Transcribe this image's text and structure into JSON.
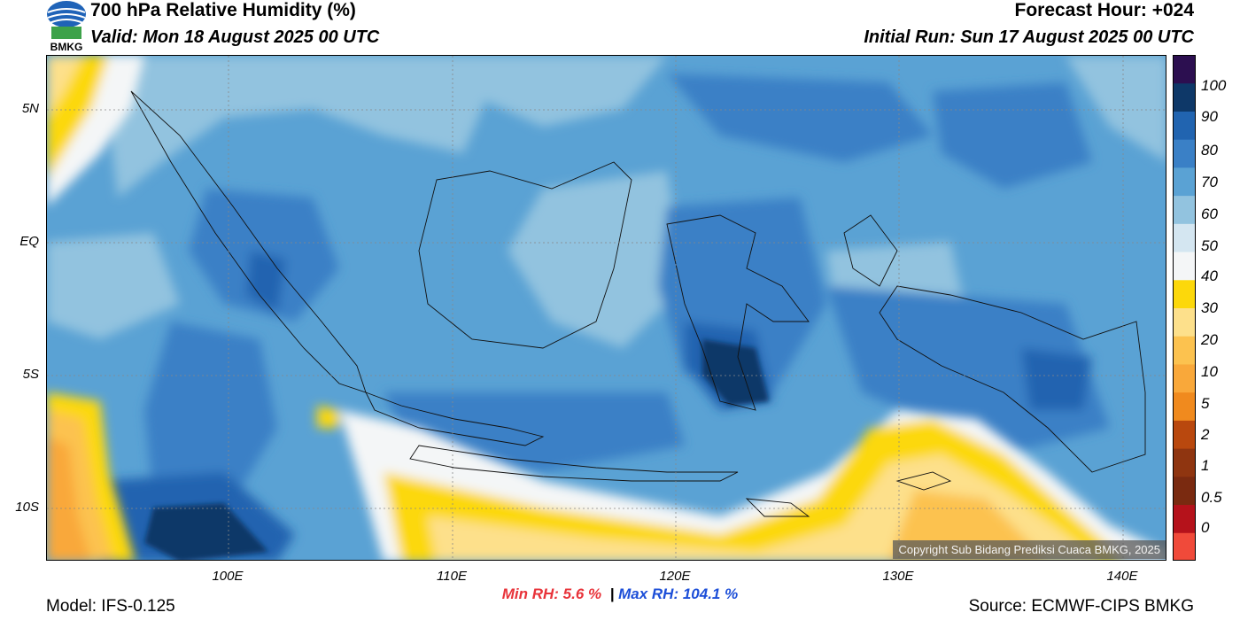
{
  "header": {
    "title": "700 hPa Relative Humidity (%)",
    "valid": "Valid: Mon 18 August 2025 00 UTC",
    "forecast_hour": "Forecast Hour: +024",
    "initial_run": "Initial Run: Sun 17 August 2025 00 UTC",
    "logo_text": "BMKG"
  },
  "map": {
    "lat_labels": [
      "5N",
      "EQ",
      "5S",
      "10S"
    ],
    "lon_labels": [
      "100E",
      "110E",
      "120E",
      "130E",
      "140E"
    ],
    "copyright": "Copyright Sub Bidang Prediksi Cuaca BMKG, 2025"
  },
  "colorbar": {
    "labels": [
      "100",
      "90",
      "80",
      "70",
      "60",
      "50",
      "40",
      "30",
      "20",
      "10",
      "5",
      "2",
      "1",
      "0.5",
      "0"
    ],
    "colors": [
      "#f04a3a",
      "#b5121b",
      "#7a2a10",
      "#8f3510",
      "#b9480e",
      "#f08a1e",
      "#f9a83a",
      "#fcc24f",
      "#fde08b",
      "#fcd80b",
      "#f4f6f7",
      "#d4e6f1",
      "#92c3df",
      "#5aa2d4",
      "#3a80c6",
      "#2164b0",
      "#0e3868",
      "#2c0f50"
    ]
  },
  "stats": {
    "min_rh": "Min RH:   5.6 %",
    "separator": "|",
    "max_rh": "Max RH: 104.1 %"
  },
  "footer": {
    "model": "Model: IFS-0.125",
    "source": "Source: ECMWF-CIPS BMKG"
  }
}
